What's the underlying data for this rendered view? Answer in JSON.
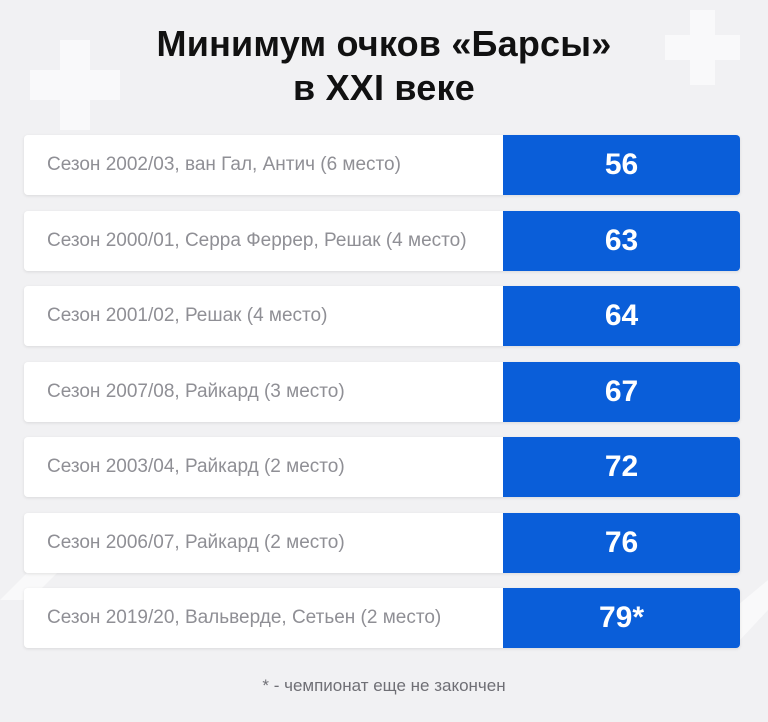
{
  "title": {
    "line1": "Минимум очков «Барсы»",
    "line2": "в XXI веке"
  },
  "colors": {
    "accent": "#0a5ed9",
    "background": "#f1f1f3",
    "label_bg": "#ffffff",
    "label_text": "#8f8f95"
  },
  "rows": [
    {
      "label": "Сезон 2002/03, ван Гал, Антич (6 место)",
      "value": "56"
    },
    {
      "label": "Сезон 2000/01, Серра Феррер, Решак (4 место)",
      "value": "63"
    },
    {
      "label": "Сезон 2001/02, Решак (4 место)",
      "value": "64"
    },
    {
      "label": "Сезон 2007/08, Райкард (3 место)",
      "value": "67"
    },
    {
      "label": "Сезон 2003/04, Райкард (2 место)",
      "value": "72"
    },
    {
      "label": "Сезон 2006/07, Райкард (2 место)",
      "value": "76"
    },
    {
      "label": "Сезон 2019/20, Вальверде, Сетьен (2 место)",
      "value": "79*"
    }
  ],
  "footnote": "* - чемпионат еще не закончен"
}
